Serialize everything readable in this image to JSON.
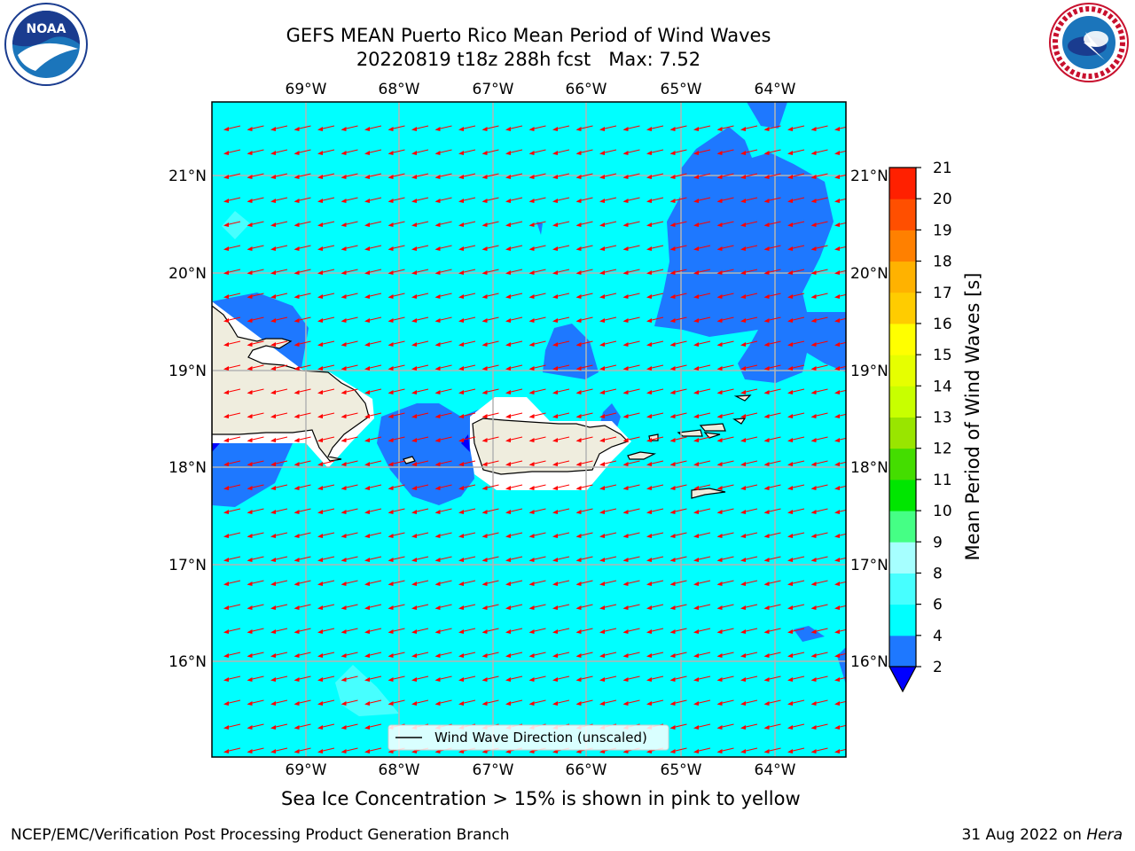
{
  "title": {
    "line1": "GEFS MEAN Puerto Rico Mean Period of Wind Waves",
    "line2": "20220819 t18z 288h fcst   Max: 7.52"
  },
  "logos": {
    "noaa": "NOAA",
    "nws": "NATIONAL WEATHER SERVICE"
  },
  "axes": {
    "lon_labels": [
      "69°W",
      "68°W",
      "67°W",
      "66°W",
      "65°W",
      "64°W"
    ],
    "lat_labels": [
      "21°N",
      "20°N",
      "19°N",
      "18°N",
      "17°N",
      "16°N"
    ]
  },
  "legend": {
    "label": "Wind Wave Direction (unscaled)"
  },
  "colorbar": {
    "label": "Mean Period of Wind Waves [s]",
    "ticks": [
      "2",
      "4",
      "6",
      "8",
      "9",
      "10",
      "11",
      "12",
      "13",
      "14",
      "15",
      "16",
      "17",
      "18",
      "19",
      "20",
      "21"
    ],
    "colors": [
      "#0000ff",
      "#1e78ff",
      "#00ffff",
      "#47ffff",
      "#a6ffff",
      "#45ff85",
      "#00e600",
      "#44dd00",
      "#99e500",
      "#c8ff00",
      "#e6ff00",
      "#ffff00",
      "#ffcc00",
      "#ffb200",
      "#ff8000",
      "#ff4f00",
      "#ff2000",
      "#ff0000"
    ]
  },
  "subtitle": "Sea Ice Concentration > 15% is shown in pink to yellow",
  "footer": {
    "left": "NCEP/EMC/Verification Post Processing Product Generation Branch",
    "right_date": "31 Aug 2022 on ",
    "right_host": "Hera"
  }
}
